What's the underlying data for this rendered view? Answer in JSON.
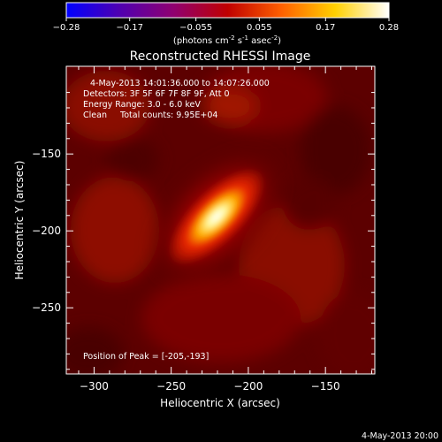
{
  "chart_data": {
    "type": "heatmap",
    "title": "Reconstructed RHESSI Image",
    "xlabel": "Heliocentric X (arcsec)",
    "ylabel": "Heliocentric Y (arcsec)",
    "xlim": [
      -318,
      -118
    ],
    "ylim": [
      -293,
      -93
    ],
    "xticks": [
      -300,
      -250,
      -200,
      -150
    ],
    "yticks": [
      -150,
      -200,
      -250
    ],
    "colorbar": {
      "range": [
        -0.28,
        0.28
      ],
      "ticks": [
        "-0.28",
        "-0.17",
        "-0.055",
        "0.055",
        "0.17",
        "0.28"
      ],
      "unit_label": "(photons cm",
      "unit_sup1": "-2",
      "unit_mid1": " s",
      "unit_sup2": "-1",
      "unit_mid2": " asec",
      "unit_sup3": "-2",
      "unit_end": ")",
      "colors": [
        "#0000ff",
        "#5000b0",
        "#900070",
        "#c00000",
        "#ff6000",
        "#ffd000",
        "#ffffff"
      ]
    },
    "peak": {
      "x": -205,
      "y": -193
    },
    "annotations": [
      "4-May-2013 14:01:36.000 to 14:07:26.000",
      "Detectors: 3F 5F 6F 7F 8F 9F, Att 0",
      "Energy Range: 3.0 - 6.0 keV",
      "Clean     Total counts: 9.95E+04"
    ],
    "peak_label": "Position of Peak = [-205,-193]"
  },
  "footer_timestamp": "4-May-2013 20:00"
}
